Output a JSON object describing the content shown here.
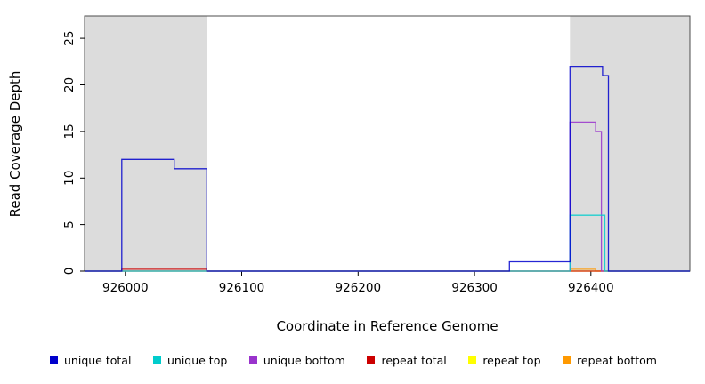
{
  "chart_data": {
    "type": "line",
    "subtype": "step-coverage",
    "title": "",
    "xlabel": "Coordinate in Reference Genome",
    "ylabel": "Read Coverage Depth",
    "xlim": [
      925965,
      926485
    ],
    "ylim": [
      0,
      27.4
    ],
    "x_ticks": [
      926000,
      926100,
      926200,
      926300,
      926400
    ],
    "y_ticks": [
      0,
      5,
      10,
      15,
      20,
      25
    ],
    "grid": false,
    "legend_position": "bottom",
    "plot_border_color": "#4d4d4d",
    "shade_color": "#dcdcdc",
    "shaded_regions": [
      {
        "from": 925965,
        "to": 926070
      },
      {
        "from": 926382,
        "to": 926485
      }
    ],
    "series": [
      {
        "name": "unique total",
        "color": "#0000cc",
        "points": [
          [
            925965,
            0
          ],
          [
            925997,
            12
          ],
          [
            926042,
            11
          ],
          [
            926070,
            0
          ],
          [
            926330,
            1
          ],
          [
            926382,
            22
          ],
          [
            926410,
            21
          ],
          [
            926415,
            0
          ]
        ]
      },
      {
        "name": "unique top",
        "color": "#00cccc",
        "points": [
          [
            925965,
            0
          ],
          [
            926382,
            6
          ],
          [
            926412,
            0
          ]
        ]
      },
      {
        "name": "unique bottom",
        "color": "#9933cc",
        "points": [
          [
            925965,
            0
          ],
          [
            926382,
            16
          ],
          [
            926404,
            15
          ],
          [
            926409,
            0
          ]
        ]
      },
      {
        "name": "repeat total",
        "color": "#cc0000",
        "points": [
          [
            925965,
            0
          ],
          [
            925997,
            0.2
          ],
          [
            926070,
            0
          ]
        ]
      },
      {
        "name": "repeat top",
        "color": "#ffff00",
        "points": [
          [
            925965,
            0
          ]
        ]
      },
      {
        "name": "repeat bottom",
        "color": "#ff9900",
        "points": [
          [
            925965,
            0
          ],
          [
            926382,
            0.2
          ],
          [
            926404,
            0
          ]
        ]
      }
    ]
  }
}
